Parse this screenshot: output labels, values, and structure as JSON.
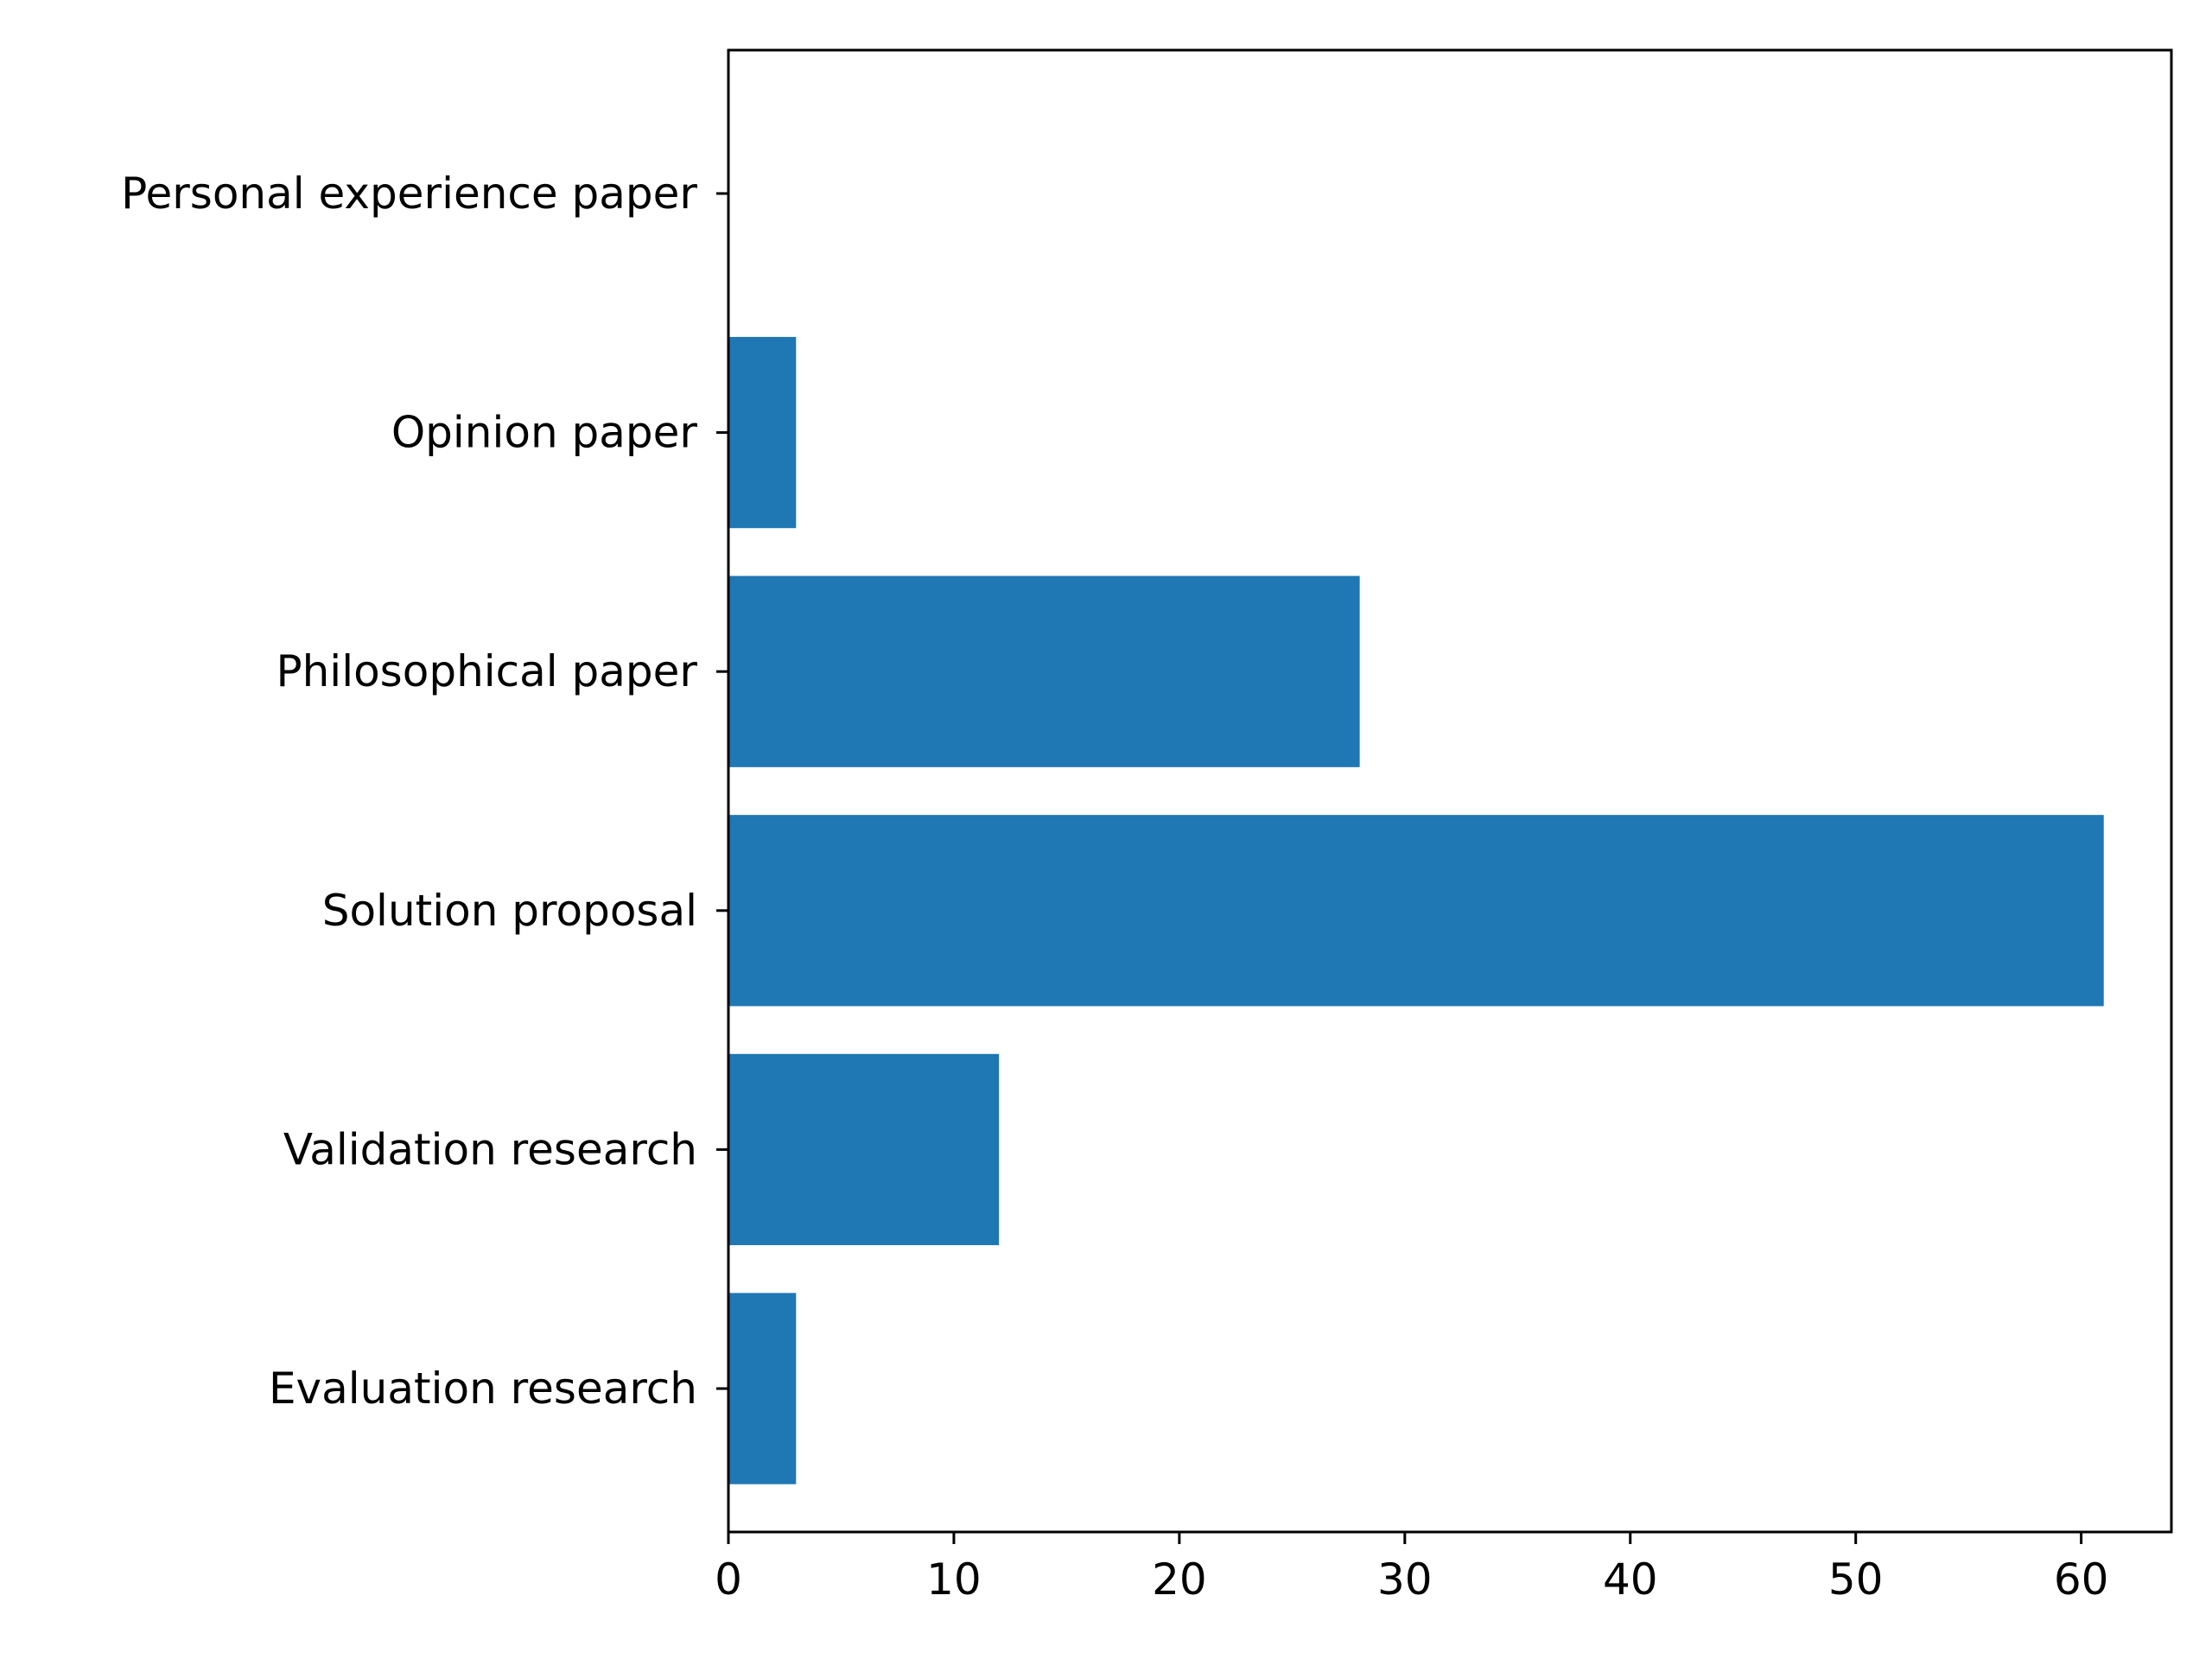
{
  "chart_data": {
    "type": "bar",
    "orientation": "horizontal",
    "categories": [
      "Evaluation research",
      "Validation research",
      "Solution proposal",
      "Philosophical paper",
      "Opinion paper",
      "Personal experience paper"
    ],
    "values": [
      3,
      12,
      61,
      28,
      3,
      0
    ],
    "title": "",
    "xlabel": "",
    "ylabel": "",
    "xlim": [
      0,
      64
    ],
    "xticks": [
      0,
      10,
      20,
      30,
      40,
      50,
      60
    ],
    "grid": false,
    "bar_color": "#1f77b4"
  }
}
